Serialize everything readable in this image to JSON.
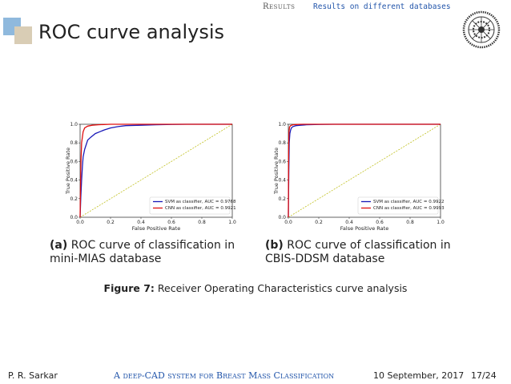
{
  "header": {
    "section": "Results",
    "subsection": "Results on different databases"
  },
  "slide": {
    "title": "ROC curve analysis"
  },
  "colors": {
    "svm": "#1a1ab8",
    "cnn": "#e01010",
    "diagonal": "#b8b800",
    "deco_blue": "#8fb9dd",
    "deco_tan": "#d9cdb5",
    "nav_accent": "#2255aa"
  },
  "figure": {
    "caption_label": "Figure 7:",
    "caption_text": "Receiver Operating Characteristics curve analysis"
  },
  "panels": [
    {
      "sub_label": "(a)",
      "caption_line1": "ROC curve of classification in",
      "caption_line2": "mini-MIAS database"
    },
    {
      "sub_label": "(b)",
      "caption_line1": "ROC curve of classification in",
      "caption_line2": "CBIS-DDSM database"
    }
  ],
  "chart_data": [
    {
      "type": "line",
      "xlabel": "False Positive Rate",
      "ylabel": "True Positive Rate",
      "xlim": [
        0,
        1
      ],
      "ylim": [
        0,
        1
      ],
      "xticks": [
        "0.0",
        "0.2",
        "0.4",
        "0.6",
        "0.8",
        "1.0"
      ],
      "yticks": [
        "0.0",
        "0.2",
        "0.4",
        "0.6",
        "0.8",
        "1.0"
      ],
      "legend_position": "lower-right",
      "series": [
        {
          "name": "SVM as classifier, AUC = 0.9768",
          "x": [
            0,
            0.005,
            0.01,
            0.015,
            0.02,
            0.03,
            0.04,
            0.05,
            0.07,
            0.1,
            0.13,
            0.16,
            0.2,
            0.25,
            0.3,
            0.4,
            0.5,
            0.6,
            0.7,
            0.8,
            1.0
          ],
          "y": [
            0,
            0.22,
            0.4,
            0.55,
            0.65,
            0.73,
            0.78,
            0.83,
            0.86,
            0.9,
            0.92,
            0.94,
            0.96,
            0.975,
            0.985,
            0.99,
            0.995,
            0.998,
            1.0,
            1.0,
            1.0
          ]
        },
        {
          "name": "CNN as classifier, AUC = 0.9921",
          "x": [
            0,
            0.005,
            0.01,
            0.02,
            0.03,
            0.05,
            0.08,
            0.12,
            0.2,
            0.3,
            0.5,
            1.0
          ],
          "y": [
            0,
            0.55,
            0.8,
            0.92,
            0.96,
            0.98,
            0.99,
            0.995,
            1.0,
            1.0,
            1.0,
            1.0
          ]
        },
        {
          "name": "",
          "x": [
            0,
            1
          ],
          "y": [
            0,
            1
          ]
        }
      ]
    },
    {
      "type": "line",
      "xlabel": "False Positive Rate",
      "ylabel": "True Positive Rate",
      "xlim": [
        0,
        1
      ],
      "ylim": [
        0,
        1
      ],
      "xticks": [
        "0.0",
        "0.2",
        "0.4",
        "0.6",
        "0.8",
        "1.0"
      ],
      "yticks": [
        "0.0",
        "0.2",
        "0.4",
        "0.6",
        "0.8",
        "1.0"
      ],
      "legend_position": "lower-right",
      "series": [
        {
          "name": "SVM as classifier, AUC = 0.9922",
          "x": [
            0,
            0.003,
            0.006,
            0.01,
            0.015,
            0.02,
            0.03,
            0.05,
            0.08,
            0.12,
            0.2,
            0.3,
            0.5,
            1.0
          ],
          "y": [
            0,
            0.5,
            0.8,
            0.9,
            0.94,
            0.96,
            0.975,
            0.985,
            0.99,
            0.995,
            0.998,
            1.0,
            1.0,
            1.0
          ]
        },
        {
          "name": "CNN as classifier, AUC = 0.9993",
          "x": [
            0,
            0.002,
            0.004,
            0.008,
            0.015,
            0.03,
            0.06,
            0.1,
            1.0
          ],
          "y": [
            0,
            0.7,
            0.92,
            0.97,
            0.985,
            0.995,
            0.998,
            1.0,
            1.0
          ]
        },
        {
          "name": "",
          "x": [
            0,
            1
          ],
          "y": [
            0,
            1
          ]
        }
      ]
    }
  ],
  "footer": {
    "author": "P. R. Sarkar",
    "talk_title": "A deep-CAD system for Breast Mass Classification",
    "date": "10 September, 2017",
    "page": "17/24"
  }
}
